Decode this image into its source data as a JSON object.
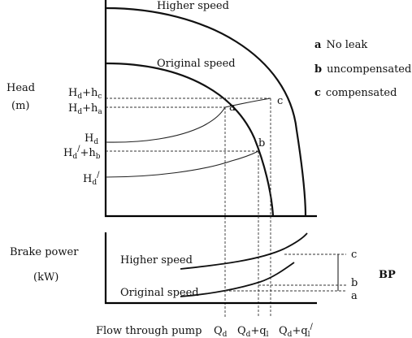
{
  "top": {
    "y_label_line1": "Head",
    "y_label_line2": "(m)",
    "curve_higher": "Higher speed",
    "curve_original": "Original speed",
    "tick_hd_hc": "H",
    "tick_hd_hc_sub": "d",
    "tick_hd_hc_suffix": "+h",
    "tick_hd_hc_sub2": "c",
    "tick_hd_ha": "H",
    "tick_hd_ha_sub": "d",
    "tick_hd_ha_suffix": "+h",
    "tick_hd_ha_sub2": "a",
    "tick_hd": "H",
    "tick_hd_sub": "d",
    "tick_hdp_hb": "H",
    "tick_hdp_hb_sub": "d",
    "tick_hdp_hb_prime": "/",
    "tick_hdp_hb_suffix": "+h",
    "tick_hdp_hb_sub2": "b",
    "tick_hdp": "H",
    "tick_hdp_sub": "d",
    "tick_hdp_prime": "/",
    "point_a": "a",
    "point_b": "b",
    "point_c": "c",
    "legend_a_key": "a",
    "legend_a_text": "No leak",
    "legend_b_key": "b",
    "legend_b_text": "uncompensated",
    "legend_c_key": "c",
    "legend_c_text": "compensated"
  },
  "bottom": {
    "y_label_line1": "Brake power",
    "y_label_line2": "(kW)",
    "curve_higher": "Higher speed",
    "curve_original": "Original speed",
    "mark_c": "c",
    "mark_b": "b",
    "mark_a": "a",
    "bp": "BP"
  },
  "x_axis": {
    "label": "Flow through pump",
    "qd": "Q",
    "qd_sub": "d",
    "qd_ql": "Q",
    "qd_ql_sub": "d",
    "qd_ql_suffix": "+q",
    "qd_ql_sub2": "l",
    "qd_qlp": "Q",
    "qd_qlp_sub": "d",
    "qd_qlp_suffix": "+q",
    "qd_qlp_sub2": "l",
    "qd_qlp_prime": "/"
  }
}
